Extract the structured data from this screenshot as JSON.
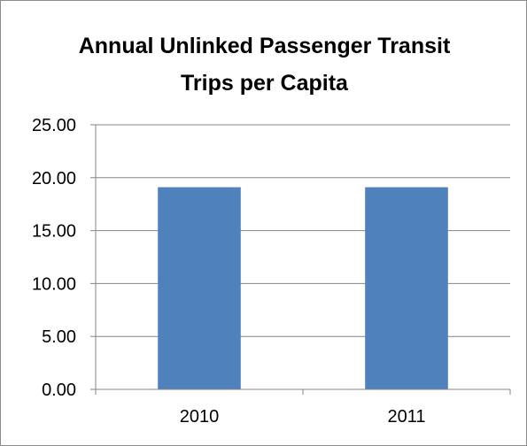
{
  "chart_data": {
    "type": "bar",
    "title": [
      "Annual Unlinked Passenger Transit",
      "Trips per Capita"
    ],
    "categories": [
      "2010",
      "2011"
    ],
    "series": [
      {
        "values": [
          19.1,
          19.1
        ],
        "color": "#4f81bd"
      }
    ],
    "ylim": [
      0,
      25
    ],
    "yticks": [
      "0.00",
      "5.00",
      "10.00",
      "15.00",
      "20.00",
      "25.00"
    ],
    "grid": true,
    "legend": "none"
  }
}
